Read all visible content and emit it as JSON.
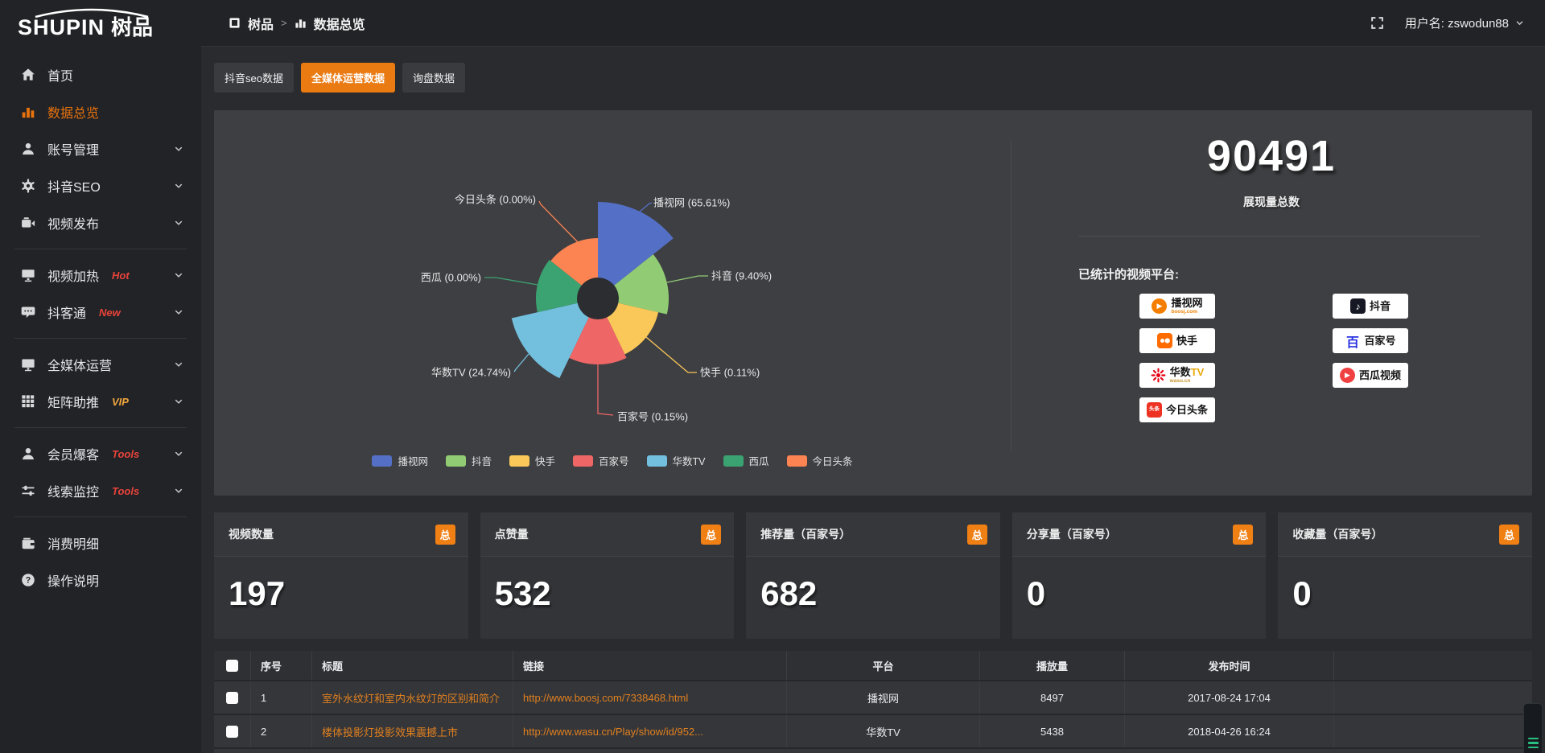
{
  "topbar": {
    "breadcrumb": {
      "root": "树品",
      "separator": ">",
      "current": "数据总览"
    },
    "username_label": "用户名: zswodun88",
    "icons": {
      "fullscreen": "fullscreen-icon",
      "user_dropdown": "chevron-down-icon"
    }
  },
  "sidebar": {
    "logo_text": "SHUPIN树品",
    "items": [
      {
        "label": "首页",
        "icon": "home"
      },
      {
        "label": "数据总览",
        "icon": "bar",
        "active": true
      },
      {
        "label": "账号管理",
        "icon": "user",
        "chevron": true
      },
      {
        "label": "抖音SEO",
        "icon": "gear",
        "chevron": true
      },
      {
        "label": "视频发布",
        "icon": "videopub",
        "chevron": true,
        "divider": true
      },
      {
        "label": "视频加热",
        "icon": "screenplay",
        "tag": "Hot",
        "tag_color": "#e8433a",
        "chevron": true
      },
      {
        "label": "抖客通",
        "icon": "chat",
        "tag": "New",
        "tag_color": "#e8433a",
        "chevron": true,
        "divider": true
      },
      {
        "label": "全媒体运营",
        "icon": "monitor",
        "chevron": true
      },
      {
        "label": "矩阵助推",
        "icon": "grid",
        "tag": "VIP",
        "tag_color": "#f0a63c",
        "chevron": true,
        "divider": true
      },
      {
        "label": "会员爆客",
        "icon": "user2",
        "tag": "Tools",
        "tag_color": "#e8433a",
        "chevron": true
      },
      {
        "label": "线索监控",
        "icon": "sliders",
        "tag": "Tools",
        "tag_color": "#e8433a",
        "chevron": true,
        "divider": true
      },
      {
        "label": "消费明细",
        "icon": "wallet"
      },
      {
        "label": "操作说明",
        "icon": "help"
      }
    ]
  },
  "tabs": [
    {
      "label": "抖音seo数据",
      "active": false
    },
    {
      "label": "全媒体运营数据",
      "active": true
    },
    {
      "label": "询盘数据",
      "active": false
    }
  ],
  "chart_data": {
    "type": "pie",
    "subtype": "nightingale-rose",
    "labels": [
      "播视网",
      "抖音",
      "快手",
      "百家号",
      "华数TV",
      "西瓜",
      "今日头条"
    ],
    "values_percent": [
      65.61,
      9.4,
      0.11,
      0.15,
      24.74,
      0.0,
      0.0
    ],
    "colors": [
      "#5470c6",
      "#91cc75",
      "#fac858",
      "#ee6666",
      "#73c0de",
      "#3ba272",
      "#fc8452"
    ],
    "label_format": "{name} ({percent}%)",
    "legend_position": "bottom",
    "legend": [
      "播视网",
      "抖音",
      "快手",
      "百家号",
      "华数TV",
      "西瓜",
      "今日头条"
    ]
  },
  "summary": {
    "total_value": "90491",
    "total_label": "展现量总数",
    "platforms_title": "已统计的视频平台:",
    "platforms_left": [
      {
        "name": "播视网",
        "sub": "boosj.com",
        "sub_color": "#f08200",
        "mark": "boosj"
      },
      {
        "name": "快手",
        "mark": "kuaishou"
      },
      {
        "name": "华数",
        "name2": "TV",
        "sub": "wasu.cn",
        "sub_color": "#c9952f",
        "mark": "wasu"
      },
      {
        "name": "今日头条",
        "mark": "toutiao"
      }
    ],
    "platforms_right": [
      {
        "name": "抖音",
        "mark": "douyin"
      },
      {
        "name": "百家号",
        "mark": "baijiahao"
      },
      {
        "name": "西瓜视频",
        "mark": "xigua"
      }
    ]
  },
  "stat_cards": [
    {
      "title": "视频数量",
      "tag": "总",
      "value": "197"
    },
    {
      "title": "点赞量",
      "tag": "总",
      "value": "532"
    },
    {
      "title": "推荐量（百家号）",
      "tag": "总",
      "value": "682"
    },
    {
      "title": "分享量（百家号）",
      "tag": "总",
      "value": "0"
    },
    {
      "title": "收藏量（百家号）",
      "tag": "总",
      "value": "0"
    }
  ],
  "table": {
    "headers": [
      "序号",
      "标题",
      "链接",
      "平台",
      "播放量",
      "发布时间"
    ],
    "rows": [
      {
        "index": "1",
        "title": "室外水纹灯和室内水纹灯的区别和简介",
        "link": "http://www.boosj.com/7338468.html",
        "platform": "播视网",
        "plays": "8497",
        "time": "2017-08-24 17:04"
      },
      {
        "index": "2",
        "title": "楼体投影灯投影效果震撼上市",
        "link": "http://www.wasu.cn/Play/show/id/952...",
        "platform": "华数TV",
        "plays": "5438",
        "time": "2018-04-26 16:24"
      }
    ]
  },
  "colors": {
    "accent": "#ea7a12",
    "badge": "#f07f14",
    "link": "#e0801f",
    "sidebar_active": "#e8720c"
  }
}
